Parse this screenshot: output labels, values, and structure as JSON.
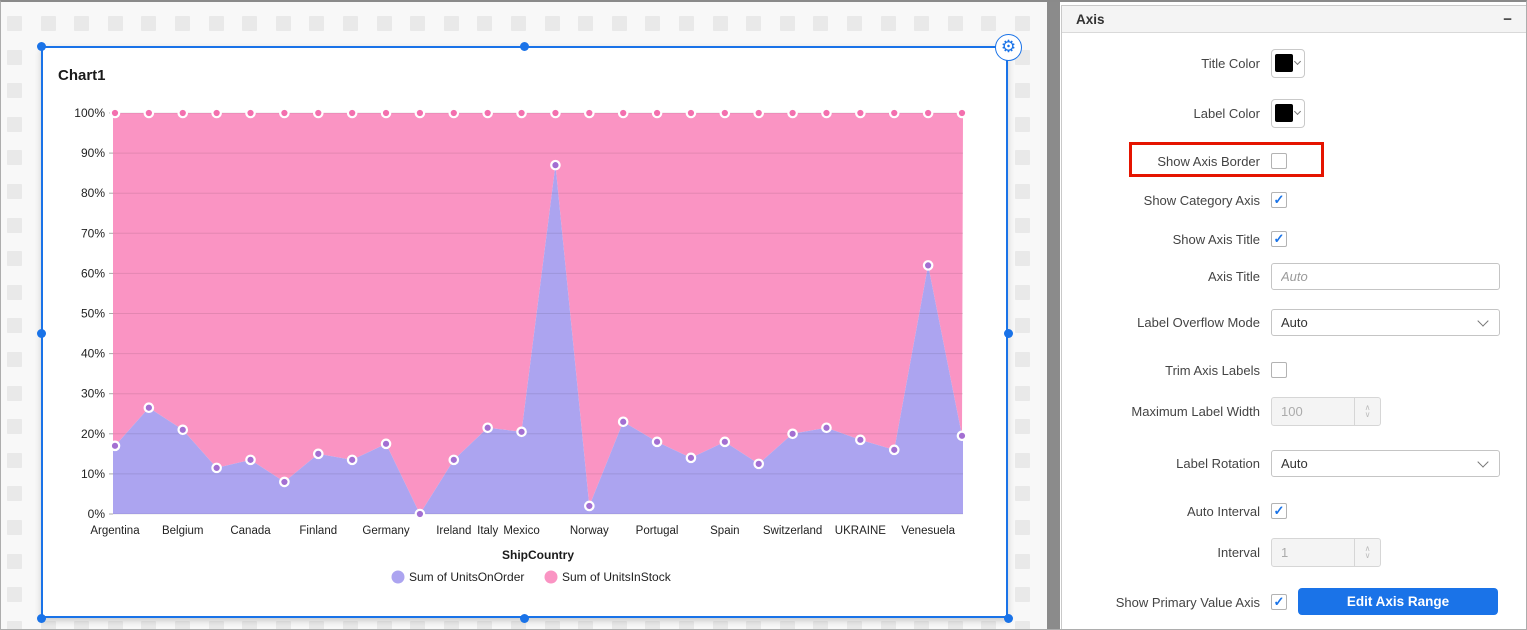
{
  "window": {
    "splitter": "vertical-splitter"
  },
  "widget": {
    "title": "Chart1",
    "gear_icon": "settings-gear",
    "selection_color": "#1a73e8"
  },
  "chart_data": {
    "type": "area",
    "stacked_100_percent": true,
    "title": "Chart1",
    "xlabel": "ShipCountry",
    "ylabel": "",
    "ylim": [
      0,
      100
    ],
    "grid": true,
    "legend_position": "bottom",
    "y_tick_labels": [
      "0%",
      "10%",
      "20%",
      "30%",
      "40%",
      "50%",
      "60%",
      "70%",
      "80%",
      "90%",
      "100%"
    ],
    "category_labels": [
      "Argentina",
      "Belgium",
      "Canada",
      "Finland",
      "Germany",
      "Ireland",
      "Italy",
      "Mexico",
      "Norway",
      "Portugal",
      "Spain",
      "Switzerland",
      "UKRAINE",
      "Venesuela"
    ],
    "category_label_point_index": [
      0,
      2,
      4,
      6,
      8,
      10,
      11,
      12,
      14,
      16,
      18,
      20,
      22,
      24
    ],
    "num_points": 26,
    "series": [
      {
        "name": "Sum of UnitsOnOrder",
        "color": "#aca4f0",
        "marker_color": "#a36fd2",
        "values": [
          17,
          26.5,
          21,
          11.5,
          13.5,
          8,
          15,
          13.5,
          17.5,
          0,
          13.5,
          21.5,
          20.5,
          87,
          2,
          23,
          18,
          14,
          18,
          12.5,
          20,
          21.5,
          18.5,
          16,
          62,
          19.5
        ]
      },
      {
        "name": "Sum of UnitsInStock",
        "color": "#fa94c3",
        "marker_color": "#f36fae",
        "values": [
          83,
          73.5,
          79,
          88.5,
          86.5,
          92,
          85,
          86.5,
          82.5,
          100,
          86.5,
          78.5,
          79.5,
          13,
          98,
          77,
          82,
          86,
          82,
          87.5,
          80,
          78.5,
          81.5,
          84,
          38,
          80.5
        ]
      }
    ]
  },
  "panel": {
    "header": {
      "title": "Axis",
      "collapse_icon": "−"
    },
    "accent_color": "#1a73e8",
    "highlight_color": "#e51400",
    "rows": [
      {
        "label": "Title Color",
        "type": "color",
        "value": "#000000"
      },
      {
        "label": "Label Color",
        "type": "color",
        "value": "#000000"
      },
      {
        "label": "Show Axis Border",
        "type": "checkbox",
        "checked": false,
        "highlighted": true
      },
      {
        "label": "Show Category Axis",
        "type": "checkbox",
        "checked": true
      },
      {
        "label": "Show Axis Title",
        "type": "checkbox",
        "checked": true
      },
      {
        "label": "Axis Title",
        "type": "text",
        "value": "",
        "placeholder": "Auto"
      },
      {
        "label": "Label Overflow Mode",
        "type": "select",
        "value": "Auto"
      },
      {
        "label": "Trim Axis Labels",
        "type": "checkbox",
        "checked": false
      },
      {
        "label": "Maximum Label Width",
        "type": "number",
        "value": "100",
        "disabled": true
      },
      {
        "label": "Label Rotation",
        "type": "select",
        "value": "Auto"
      },
      {
        "label": "Auto Interval",
        "type": "checkbox",
        "checked": true
      },
      {
        "label": "Interval",
        "type": "number",
        "value": "1",
        "disabled": true
      },
      {
        "label": "Show Primary Value Axis",
        "type": "checkbox",
        "checked": true,
        "action_button": "Edit Axis Range"
      }
    ]
  }
}
